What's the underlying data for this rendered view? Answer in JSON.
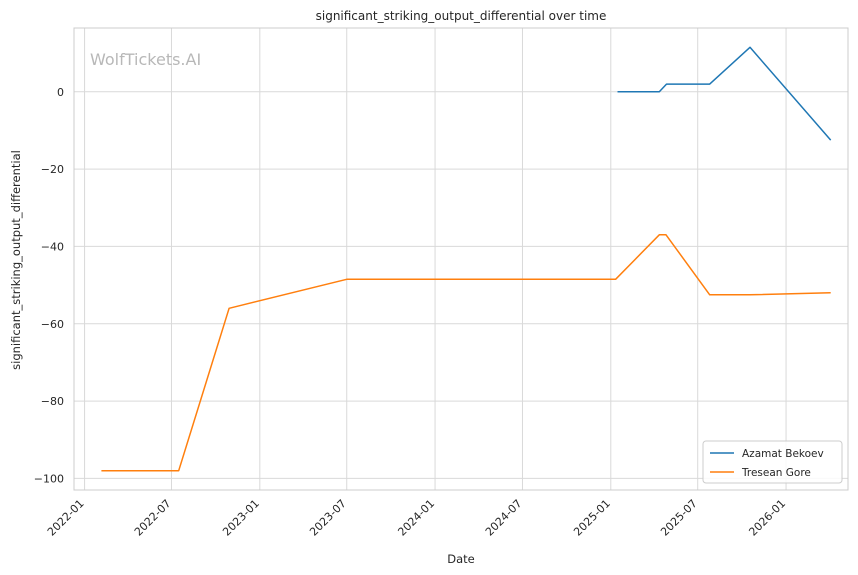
{
  "chart_data": {
    "type": "line",
    "title": "significant_striking_output_differential over time",
    "xlabel": "Date",
    "ylabel": "significant_striking_output_differential",
    "watermark": "WolfTickets.AI",
    "x_ticks": [
      "2022-01",
      "2022-07",
      "2023-01",
      "2023-07",
      "2024-01",
      "2024-07",
      "2025-01",
      "2025-07",
      "2026-01"
    ],
    "y_ticks": [
      0,
      -20,
      -40,
      -60,
      -80,
      -100
    ],
    "xlim": [
      "2021-12-10",
      "2026-05-10"
    ],
    "ylim": [
      -103,
      16.5
    ],
    "grid": true,
    "legend_position": "lower-right",
    "series": [
      {
        "name": "Azamat Bekoev",
        "color": "#1f77b4",
        "points": [
          {
            "date": "2025-01-15",
            "value": 0
          },
          {
            "date": "2025-04-12",
            "value": 0
          },
          {
            "date": "2025-04-27",
            "value": 2
          },
          {
            "date": "2025-07-26",
            "value": 2
          },
          {
            "date": "2025-10-18",
            "value": 11.5
          },
          {
            "date": "2026-04-04",
            "value": -12.5
          }
        ]
      },
      {
        "name": "Tresean Gore",
        "color": "#ff7f0e",
        "points": [
          {
            "date": "2022-02-05",
            "value": -98
          },
          {
            "date": "2022-07-16",
            "value": -98
          },
          {
            "date": "2022-10-29",
            "value": -56
          },
          {
            "date": "2023-07-01",
            "value": -48.5
          },
          {
            "date": "2025-01-11",
            "value": -48.5
          },
          {
            "date": "2025-04-12",
            "value": -37
          },
          {
            "date": "2025-04-26",
            "value": -37
          },
          {
            "date": "2025-07-26",
            "value": -52.5
          },
          {
            "date": "2025-10-18",
            "value": -52.5
          },
          {
            "date": "2026-04-04",
            "value": -52
          }
        ]
      }
    ]
  }
}
